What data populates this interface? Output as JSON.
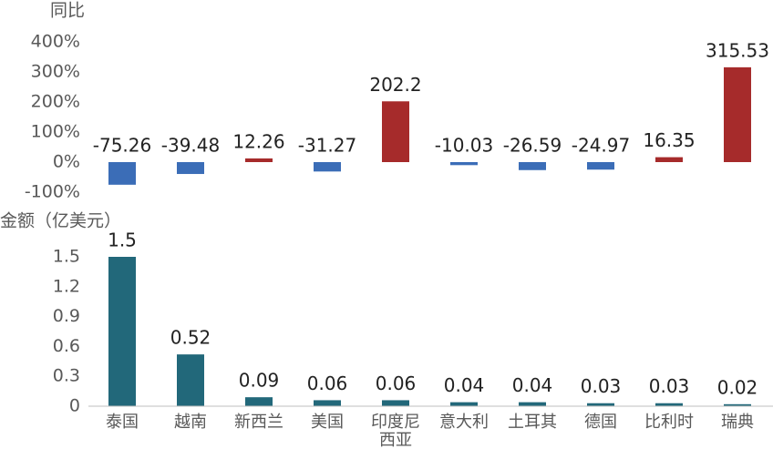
{
  "chart_data": [
    {
      "type": "bar",
      "title": "同比",
      "values": [
        -75.26,
        -39.48,
        12.26,
        -31.27,
        202.2,
        -10.03,
        -26.59,
        -24.97,
        16.35,
        315.53
      ],
      "positive_color": "#a62b2b",
      "negative_color": "#3b6db7",
      "ylim": [
        -100,
        400
      ],
      "yticks": [
        {
          "value": -100,
          "label": "-100%"
        },
        {
          "value": 0,
          "label": "0%"
        },
        {
          "value": 100,
          "label": "100%"
        },
        {
          "value": 200,
          "label": "200%"
        },
        {
          "value": 300,
          "label": "300%"
        },
        {
          "value": 400,
          "label": "400%"
        }
      ]
    },
    {
      "type": "bar",
      "title": "金额（亿美元）",
      "categories": [
        "泰国",
        "越南",
        "新西兰",
        "美国",
        "印度尼西亚",
        "意大利",
        "土耳其",
        "德国",
        "比利时",
        "瑞典"
      ],
      "values": [
        1.5,
        0.52,
        0.09,
        0.06,
        0.06,
        0.04,
        0.04,
        0.03,
        0.03,
        0.02
      ],
      "color": "#22687a",
      "ylim": [
        0,
        1.5
      ],
      "yticks": [
        0,
        0.3,
        0.6,
        0.9,
        1.2,
        1.5
      ]
    }
  ]
}
